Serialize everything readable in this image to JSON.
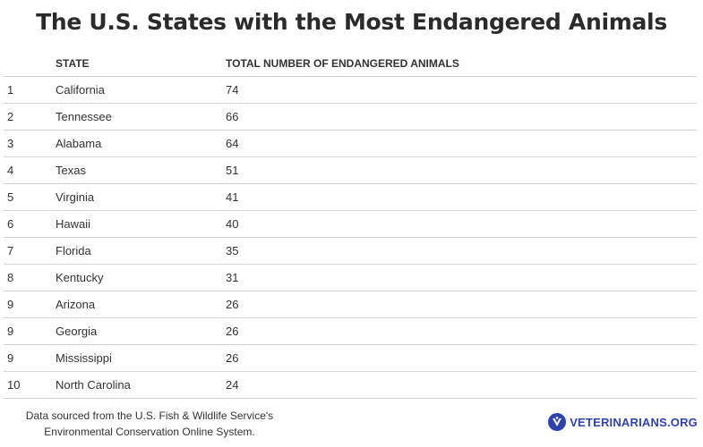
{
  "chart_data": {
    "type": "table",
    "title": "The U.S. States with the Most Endangered Animals",
    "columns": [
      "",
      "STATE",
      "TOTAL NUMBER OF ENDANGERED ANIMALS"
    ],
    "rows": [
      {
        "rank": "1",
        "state": "California",
        "total": "74"
      },
      {
        "rank": "2",
        "state": "Tennessee",
        "total": "66"
      },
      {
        "rank": "3",
        "state": "Alabama",
        "total": "64"
      },
      {
        "rank": "4",
        "state": "Texas",
        "total": "51"
      },
      {
        "rank": "5",
        "state": "Virginia",
        "total": "41"
      },
      {
        "rank": "6",
        "state": "Hawaii",
        "total": "40"
      },
      {
        "rank": "7",
        "state": "Florida",
        "total": "35"
      },
      {
        "rank": "8",
        "state": "Kentucky",
        "total": "31"
      },
      {
        "rank": "9",
        "state": "Arizona",
        "total": "26"
      },
      {
        "rank": "9",
        "state": "Georgia",
        "total": "26"
      },
      {
        "rank": "9",
        "state": "Mississippi",
        "total": "26"
      },
      {
        "rank": "10",
        "state": "North Carolina",
        "total": "24"
      }
    ]
  },
  "footer": {
    "source_line1": "Data sourced from the U.S. Fish & Wildlife Service's",
    "source_line2": "Environmental Conservation Online System.",
    "logo_text": "VETERINARIANS.ORG",
    "logo_icon": "veterinarians-logo-icon",
    "brand_color": "#2f43a8"
  }
}
